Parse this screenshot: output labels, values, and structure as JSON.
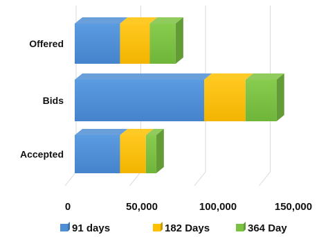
{
  "chart_data": {
    "type": "bar",
    "orientation": "horizontal",
    "stacked": true,
    "style": "3d",
    "categories": [
      "Offered",
      "Bids",
      "Accepted"
    ],
    "series": [
      {
        "name": "91 days",
        "values": [
          35000,
          100000,
          35000
        ],
        "color": "#4f8fd6"
      },
      {
        "name": "182 Days",
        "values": [
          23000,
          32000,
          20000
        ],
        "color": "#ffc000"
      },
      {
        "name": "364 Day",
        "values": [
          20000,
          24000,
          8000
        ],
        "color": "#7cc242"
      }
    ],
    "x_ticks": [
      "0",
      "50,000",
      "100,000",
      "150,000"
    ],
    "xlim": [
      0,
      150000
    ],
    "grid": "vertical",
    "legend_position": "bottom"
  }
}
